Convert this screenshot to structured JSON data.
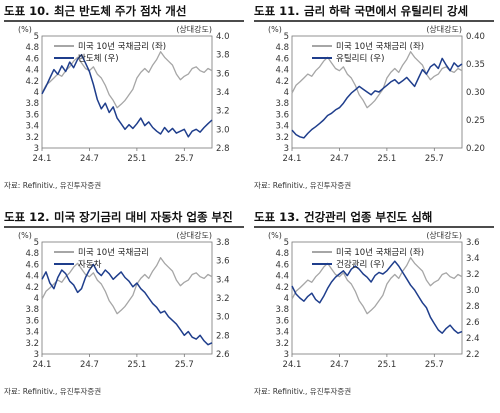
{
  "chart_data": [
    {
      "type": "line",
      "title_no": "도표 10.",
      "title": "최근 반도체 주가 점차 개선",
      "left_unit": "(%)",
      "right_unit": "(상대강도)",
      "ylim_left": [
        3,
        5
      ],
      "left_ticks": [
        "5",
        "4.8",
        "4.6",
        "4.4",
        "4.2",
        "4",
        "3.8",
        "3.6",
        "3.4",
        "3.2",
        "3"
      ],
      "ylim_right": [
        2.8,
        4.0
      ],
      "right_ticks": [
        "4.0",
        "3.8",
        "3.6",
        "3.4",
        "3.2",
        "3.0",
        "2.8"
      ],
      "x_ticks": [
        "24.1",
        "24.7",
        "25.1",
        "25.7"
      ],
      "source": "자료: Refinitiv., 유진투자증권",
      "series": [
        {
          "name": "미국 10년 국채금리 (좌)",
          "axis": "left",
          "color": "#a6a6a6",
          "x": [
            0,
            1,
            2,
            3,
            4,
            5,
            6,
            7,
            8,
            9,
            10,
            11,
            12,
            13,
            14,
            15,
            16,
            17,
            18,
            19,
            20,
            21,
            22,
            23,
            24,
            25,
            26,
            27,
            28,
            29,
            30,
            31,
            32,
            33,
            34,
            35,
            36,
            37,
            38,
            39,
            40,
            41,
            42,
            43
          ],
          "values": [
            3.98,
            4.12,
            4.18,
            4.25,
            4.32,
            4.28,
            4.38,
            4.45,
            4.55,
            4.62,
            4.52,
            4.42,
            4.38,
            4.45,
            4.32,
            4.25,
            4.12,
            3.95,
            3.85,
            3.72,
            3.78,
            3.85,
            3.95,
            4.05,
            4.25,
            4.35,
            4.42,
            4.35,
            4.48,
            4.58,
            4.72,
            4.62,
            4.55,
            4.48,
            4.32,
            4.22,
            4.28,
            4.32,
            4.42,
            4.45,
            4.38,
            4.35,
            4.42,
            4.38
          ]
        },
        {
          "name": "반도체 (우)",
          "axis": "right",
          "color": "#1f3e8c",
          "x": [
            0,
            1,
            2,
            3,
            4,
            5,
            6,
            7,
            8,
            9,
            10,
            11,
            12,
            13,
            14,
            15,
            16,
            17,
            18,
            19,
            20,
            21,
            22,
            23,
            24,
            25,
            26,
            27,
            28,
            29,
            30,
            31,
            32,
            33,
            34,
            35,
            36,
            37,
            38,
            39,
            40,
            41,
            42,
            43
          ],
          "values": [
            3.38,
            3.46,
            3.55,
            3.64,
            3.59,
            3.68,
            3.62,
            3.72,
            3.66,
            3.75,
            3.8,
            3.71,
            3.62,
            3.48,
            3.32,
            3.22,
            3.28,
            3.18,
            3.24,
            3.12,
            3.06,
            3.0,
            3.05,
            3.01,
            3.06,
            3.12,
            3.04,
            3.08,
            3.02,
            2.98,
            2.95,
            3.02,
            2.97,
            3.01,
            2.96,
            2.98,
            3.0,
            2.92,
            2.98,
            3.0,
            2.97,
            3.02,
            3.06,
            3.1
          ]
        }
      ]
    },
    {
      "type": "line",
      "title_no": "도표 11.",
      "title": "금리 하락 국면에서 유틸리티 강세",
      "left_unit": "(%)",
      "right_unit": "(상대강도)",
      "ylim_left": [
        3,
        5
      ],
      "left_ticks": [
        "5",
        "4.8",
        "4.6",
        "4.4",
        "4.2",
        "4",
        "3.8",
        "3.6",
        "3.4",
        "3.2",
        "3"
      ],
      "ylim_right": [
        0.2,
        0.4
      ],
      "right_ticks": [
        "0.40",
        "0.35",
        "0.30",
        "0.25",
        "0.20"
      ],
      "x_ticks": [
        "24.1",
        "24.7",
        "25.1",
        "25.7"
      ],
      "source": "자료: Refinitiv., 유진투자증권",
      "series": [
        {
          "name": "미국 10년 국채금리 (좌)",
          "axis": "left",
          "color": "#a6a6a6",
          "x": [
            0,
            1,
            2,
            3,
            4,
            5,
            6,
            7,
            8,
            9,
            10,
            11,
            12,
            13,
            14,
            15,
            16,
            17,
            18,
            19,
            20,
            21,
            22,
            23,
            24,
            25,
            26,
            27,
            28,
            29,
            30,
            31,
            32,
            33,
            34,
            35,
            36,
            37,
            38,
            39,
            40,
            41,
            42,
            43
          ],
          "values": [
            3.98,
            4.12,
            4.18,
            4.25,
            4.32,
            4.28,
            4.38,
            4.45,
            4.55,
            4.62,
            4.52,
            4.42,
            4.38,
            4.45,
            4.32,
            4.25,
            4.12,
            3.95,
            3.85,
            3.72,
            3.78,
            3.85,
            3.95,
            4.05,
            4.25,
            4.35,
            4.42,
            4.35,
            4.48,
            4.58,
            4.72,
            4.62,
            4.55,
            4.48,
            4.32,
            4.22,
            4.28,
            4.32,
            4.42,
            4.45,
            4.38,
            4.35,
            4.42,
            4.38
          ]
        },
        {
          "name": "유틸리티 (우)",
          "axis": "right",
          "color": "#1f3e8c",
          "x": [
            0,
            1,
            2,
            3,
            4,
            5,
            6,
            7,
            8,
            9,
            10,
            11,
            12,
            13,
            14,
            15,
            16,
            17,
            18,
            19,
            20,
            21,
            22,
            23,
            24,
            25,
            26,
            27,
            28,
            29,
            30,
            31,
            32,
            33,
            34,
            35,
            36,
            37,
            38,
            39,
            40,
            41,
            42,
            43
          ],
          "values": [
            0.232,
            0.224,
            0.22,
            0.218,
            0.226,
            0.233,
            0.238,
            0.244,
            0.25,
            0.258,
            0.262,
            0.268,
            0.272,
            0.28,
            0.29,
            0.298,
            0.304,
            0.31,
            0.305,
            0.3,
            0.295,
            0.302,
            0.3,
            0.306,
            0.312,
            0.318,
            0.322,
            0.315,
            0.32,
            0.326,
            0.318,
            0.31,
            0.325,
            0.34,
            0.332,
            0.345,
            0.35,
            0.342,
            0.36,
            0.348,
            0.338,
            0.352,
            0.345,
            0.35
          ]
        }
      ]
    },
    {
      "type": "line",
      "title_no": "도표 12.",
      "title": "미국 장기금리 대비 자동차 업종 부진",
      "left_unit": "(%)",
      "right_unit": "(상대강도)",
      "ylim_left": [
        3,
        5
      ],
      "left_ticks": [
        "5",
        "4.8",
        "4.6",
        "4.4",
        "4.2",
        "4",
        "3.8",
        "3.6",
        "3.4",
        "3.2",
        "3"
      ],
      "ylim_right": [
        2.6,
        3.8
      ],
      "right_ticks": [
        "3.8",
        "3.6",
        "3.4",
        "3.2",
        "3.0",
        "2.8",
        "2.6"
      ],
      "x_ticks": [
        "24.1",
        "24.7",
        "25.1",
        "25.7"
      ],
      "source": "자료: Refinitiv., 유진투자증권",
      "series": [
        {
          "name": "미국 10년 국채금리",
          "axis": "left",
          "color": "#a6a6a6",
          "x": [
            0,
            1,
            2,
            3,
            4,
            5,
            6,
            7,
            8,
            9,
            10,
            11,
            12,
            13,
            14,
            15,
            16,
            17,
            18,
            19,
            20,
            21,
            22,
            23,
            24,
            25,
            26,
            27,
            28,
            29,
            30,
            31,
            32,
            33,
            34,
            35,
            36,
            37,
            38,
            39,
            40,
            41,
            42,
            43
          ],
          "values": [
            3.98,
            4.12,
            4.18,
            4.25,
            4.32,
            4.28,
            4.38,
            4.45,
            4.55,
            4.62,
            4.52,
            4.42,
            4.38,
            4.45,
            4.32,
            4.25,
            4.12,
            3.95,
            3.85,
            3.72,
            3.78,
            3.85,
            3.95,
            4.05,
            4.25,
            4.35,
            4.42,
            4.35,
            4.48,
            4.58,
            4.72,
            4.62,
            4.55,
            4.48,
            4.32,
            4.22,
            4.28,
            4.32,
            4.42,
            4.45,
            4.38,
            4.35,
            4.42,
            4.38
          ]
        },
        {
          "name": "자동차",
          "axis": "right",
          "color": "#1f3e8c",
          "x": [
            0,
            1,
            2,
            3,
            4,
            5,
            6,
            7,
            8,
            9,
            10,
            11,
            12,
            13,
            14,
            15,
            16,
            17,
            18,
            19,
            20,
            21,
            22,
            23,
            24,
            25,
            26,
            27,
            28,
            29,
            30,
            31,
            32,
            33,
            34,
            35,
            36,
            37,
            38,
            39,
            40,
            41,
            42,
            43
          ],
          "values": [
            3.4,
            3.48,
            3.36,
            3.3,
            3.42,
            3.5,
            3.46,
            3.38,
            3.34,
            3.26,
            3.3,
            3.42,
            3.5,
            3.56,
            3.48,
            3.44,
            3.5,
            3.46,
            3.4,
            3.44,
            3.48,
            3.42,
            3.38,
            3.32,
            3.36,
            3.3,
            3.26,
            3.2,
            3.14,
            3.1,
            3.04,
            3.06,
            3.0,
            2.96,
            2.92,
            2.86,
            2.8,
            2.84,
            2.78,
            2.76,
            2.8,
            2.74,
            2.7,
            2.72
          ]
        }
      ]
    },
    {
      "type": "line",
      "title_no": "도표 13.",
      "title": "건강관리 업종 부진도 심해",
      "left_unit": "(%)",
      "right_unit": "(상대강도)",
      "ylim_left": [
        3,
        5
      ],
      "left_ticks": [
        "5",
        "4.8",
        "4.6",
        "4.4",
        "4.2",
        "4",
        "3.8",
        "3.6",
        "3.4",
        "3.2",
        "3"
      ],
      "ylim_right": [
        2.2,
        3.6
      ],
      "right_ticks": [
        "3.6",
        "3.4",
        "3.2",
        "3.0",
        "2.8",
        "2.6",
        "2.4",
        "2.2"
      ],
      "x_ticks": [
        "24.1",
        "24.7",
        "25.1",
        "25.7"
      ],
      "source": "자료: Refinitiv., 유진투자증권",
      "series": [
        {
          "name": "미국 10년 국채금리 (좌)",
          "axis": "left",
          "color": "#a6a6a6",
          "x": [
            0,
            1,
            2,
            3,
            4,
            5,
            6,
            7,
            8,
            9,
            10,
            11,
            12,
            13,
            14,
            15,
            16,
            17,
            18,
            19,
            20,
            21,
            22,
            23,
            24,
            25,
            26,
            27,
            28,
            29,
            30,
            31,
            32,
            33,
            34,
            35,
            36,
            37,
            38,
            39,
            40,
            41,
            42,
            43
          ],
          "values": [
            3.98,
            4.12,
            4.18,
            4.25,
            4.32,
            4.28,
            4.38,
            4.45,
            4.55,
            4.62,
            4.52,
            4.42,
            4.38,
            4.45,
            4.32,
            4.25,
            4.12,
            3.95,
            3.85,
            3.72,
            3.78,
            3.85,
            3.95,
            4.05,
            4.25,
            4.35,
            4.42,
            4.35,
            4.48,
            4.58,
            4.72,
            4.62,
            4.55,
            4.48,
            4.32,
            4.22,
            4.28,
            4.32,
            4.42,
            4.45,
            4.38,
            4.35,
            4.42,
            4.38
          ]
        },
        {
          "name": "건강관리 (우)",
          "axis": "right",
          "color": "#1f3e8c",
          "x": [
            0,
            1,
            2,
            3,
            4,
            5,
            6,
            7,
            8,
            9,
            10,
            11,
            12,
            13,
            14,
            15,
            16,
            17,
            18,
            19,
            20,
            21,
            22,
            23,
            24,
            25,
            26,
            27,
            28,
            29,
            30,
            31,
            32,
            33,
            34,
            35,
            36,
            37,
            38,
            39,
            40,
            41,
            42,
            43
          ],
          "values": [
            3.05,
            2.95,
            2.9,
            2.86,
            2.92,
            2.96,
            2.88,
            2.84,
            2.92,
            3.02,
            3.1,
            3.16,
            3.2,
            3.24,
            3.18,
            3.26,
            3.3,
            3.26,
            3.2,
            3.16,
            3.1,
            3.18,
            3.22,
            3.2,
            3.24,
            3.3,
            3.36,
            3.3,
            3.22,
            3.14,
            3.06,
            3.0,
            2.92,
            2.84,
            2.78,
            2.66,
            2.58,
            2.5,
            2.46,
            2.52,
            2.56,
            2.5,
            2.46,
            2.48
          ]
        }
      ]
    }
  ]
}
